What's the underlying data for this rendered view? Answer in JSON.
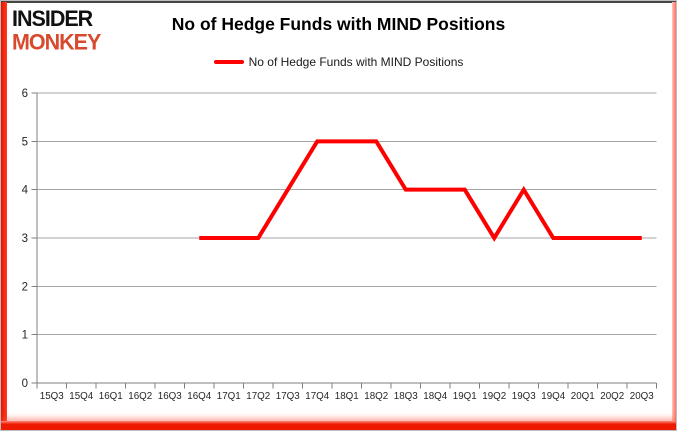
{
  "logo": {
    "line1": "INSIDER",
    "line2": "MONKEY"
  },
  "header": {
    "title": "No of Hedge Funds with MIND Positions"
  },
  "legend": {
    "label": "No of Hedge Funds with MIND Positions"
  },
  "colors": {
    "series_red": "#ff0000",
    "logo_red": "#d84a2e",
    "frame_red": "#ee1a00",
    "grid_gray": "#a6a6a6",
    "axis_gray": "#7f7f7f",
    "tick_label": "#262626"
  },
  "chart_data": {
    "type": "line",
    "title": "No of Hedge Funds with MIND Positions",
    "categories": [
      "15Q3",
      "15Q4",
      "16Q1",
      "16Q2",
      "16Q3",
      "16Q4",
      "17Q1",
      "17Q2",
      "17Q3",
      "17Q4",
      "18Q1",
      "18Q2",
      "18Q3",
      "18Q4",
      "19Q1",
      "19Q2",
      "19Q3",
      "19Q4",
      "20Q1",
      "20Q2",
      "20Q3"
    ],
    "series": [
      {
        "name": "No of Hedge Funds with MIND Positions",
        "color": "#ff0000",
        "values": [
          null,
          null,
          null,
          null,
          null,
          3,
          3,
          3,
          4,
          5,
          5,
          5,
          4,
          4,
          4,
          3,
          4,
          3,
          3,
          3,
          3
        ]
      }
    ],
    "xlabel": "",
    "ylabel": "",
    "ylim": [
      0,
      6
    ],
    "yticks": [
      0,
      1,
      2,
      3,
      4,
      5,
      6
    ],
    "grid": true,
    "legend_position": "top-center",
    "markers": false,
    "line_width": 4
  }
}
